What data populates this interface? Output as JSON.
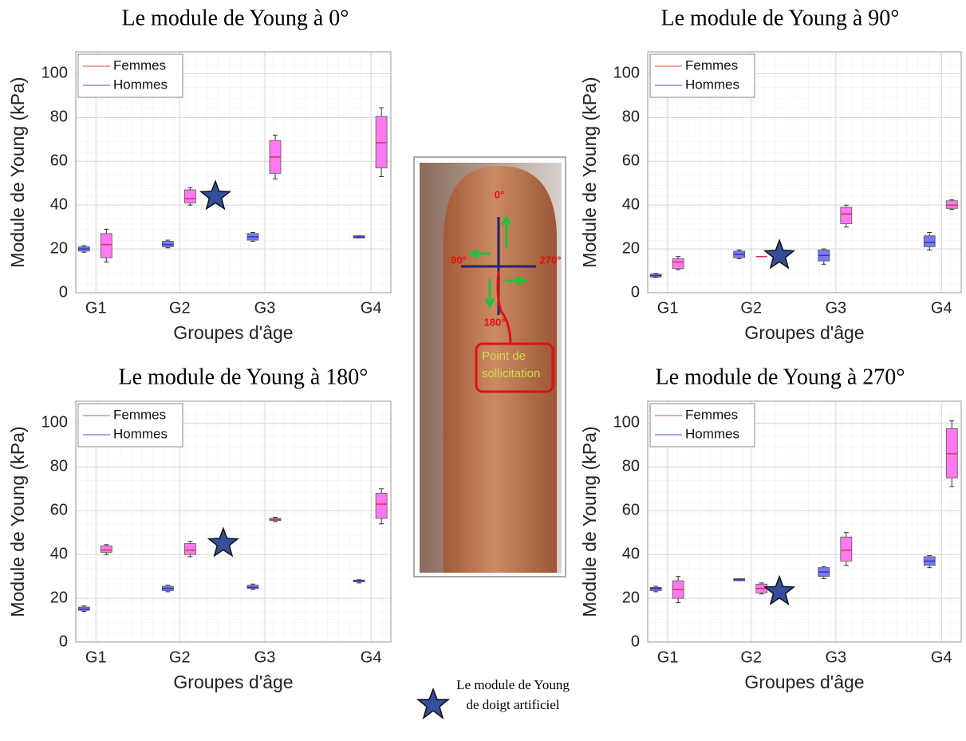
{
  "chart_data": [
    {
      "type": "box",
      "title": "Le module de Young à 0°",
      "xlabel": "Groupes d'âge",
      "ylabel": "Module de Young (kPa)",
      "categories": [
        "G1",
        "G2",
        "G3",
        "G4"
      ],
      "ylim": [
        0,
        110
      ],
      "yticks": [
        0,
        20,
        40,
        60,
        80,
        100
      ],
      "grid": true,
      "legend": "upper left",
      "series": [
        {
          "name": "Femmes",
          "color": "#f08a80",
          "fill": "#ff7af2",
          "median_color": "#e03050",
          "values": [
            [
              14,
              16,
              22,
              27,
              29
            ],
            [
              40,
              41,
              43,
              47,
              48
            ],
            [
              52,
              54.5,
              62,
              69.5,
              72
            ],
            [
              53,
              57,
              68.5,
              80.5,
              84.5
            ]
          ]
        },
        {
          "name": "Hommes",
          "color": "#8a8ae6",
          "fill": "#7a7af2",
          "median_color": "#3030c0",
          "values": [
            [
              18.5,
              19,
              20,
              21,
              21.5
            ],
            [
              20.5,
              21,
              22,
              23.5,
              24
            ],
            [
              23.5,
              24,
              25.5,
              27,
              27.5
            ],
            [
              25,
              25,
              25.5,
              26,
              26
            ]
          ]
        }
      ],
      "star_value": 44,
      "star_color": "#34509a"
    },
    {
      "type": "box",
      "title": "Le module de Young à 90°",
      "xlabel": "Groupes d'âge",
      "ylabel": "Module de Young (kPa)",
      "categories": [
        "G1",
        "G2",
        "G3",
        "G4"
      ],
      "ylim": [
        0,
        110
      ],
      "yticks": [
        0,
        20,
        40,
        60,
        80,
        100
      ],
      "grid": true,
      "legend": "upper left",
      "series": [
        {
          "name": "Femmes",
          "color": "#f08a80",
          "fill": "#ff7af2",
          "median_color": "#e03050",
          "values": [
            [
              10.5,
              11,
              14,
              15.5,
              16.5
            ],
            [
              16.5,
              16.5,
              16.5,
              16.5,
              16.5
            ],
            [
              30,
              31.5,
              36,
              39,
              40
            ],
            [
              38,
              38.5,
              40,
              42,
              42.5
            ]
          ]
        },
        {
          "name": "Hommes",
          "color": "#8a8ae6",
          "fill": "#7a7af2",
          "median_color": "#3030c0",
          "values": [
            [
              7,
              7.2,
              7.8,
              8.5,
              8.8
            ],
            [
              15.5,
              16,
              17.5,
              19,
              19.5
            ],
            [
              13,
              14.5,
              17,
              19.5,
              20
            ],
            [
              19.5,
              21,
              23,
              26,
              27.5
            ]
          ]
        }
      ],
      "star_value": 17,
      "star_color": "#34509a"
    },
    {
      "type": "box",
      "title": "Le module de Young à 180°",
      "xlabel": "Groupes d'âge",
      "ylabel": "Module de Young (kPa)",
      "categories": [
        "G1",
        "G2",
        "G3",
        "G4"
      ],
      "ylim": [
        0,
        110
      ],
      "yticks": [
        0,
        20,
        40,
        60,
        80,
        100
      ],
      "grid": true,
      "legend": "upper left",
      "series": [
        {
          "name": "Femmes",
          "color": "#f08a80",
          "fill": "#ff7af2",
          "median_color": "#e03050",
          "values": [
            [
              40,
              41,
              42,
              44,
              44.5
            ],
            [
              39,
              40,
              42,
              45,
              46
            ],
            [
              55,
              55.5,
              56,
              56.5,
              57
            ],
            [
              54,
              56.5,
              63,
              68,
              70
            ]
          ]
        },
        {
          "name": "Hommes",
          "color": "#8a8ae6",
          "fill": "#7a7af2",
          "median_color": "#3030c0",
          "values": [
            [
              14,
              14.5,
              15,
              16,
              16.5
            ],
            [
              23,
              23.5,
              24.5,
              25.5,
              26
            ],
            [
              24,
              24.5,
              25,
              26,
              26.5
            ],
            [
              27,
              27.5,
              28,
              28.3,
              28.5
            ]
          ]
        }
      ],
      "star_value": 45,
      "star_color": "#34509a"
    },
    {
      "type": "box",
      "title": "Le module de Young à 270°",
      "xlabel": "Groupes d'âge",
      "ylabel": "Module de Young (kPa)",
      "categories": [
        "G1",
        "G2",
        "G3",
        "G4"
      ],
      "ylim": [
        0,
        110
      ],
      "yticks": [
        0,
        20,
        40,
        60,
        80,
        100
      ],
      "grid": true,
      "legend": "upper left",
      "series": [
        {
          "name": "Femmes",
          "color": "#f08a80",
          "fill": "#ff7af2",
          "median_color": "#e03050",
          "values": [
            [
              18,
              20,
              24,
              28,
              30
            ],
            [
              22,
              22.5,
              24.5,
              26.5,
              27
            ],
            [
              35,
              37,
              42,
              48,
              50
            ],
            [
              71,
              75,
              86,
              97.5,
              101
            ]
          ]
        },
        {
          "name": "Hommes",
          "color": "#8a8ae6",
          "fill": "#7a7af2",
          "median_color": "#3030c0",
          "values": [
            [
              23,
              23.5,
              24.5,
              25,
              25.5
            ],
            [
              28,
              28,
              28.5,
              29,
              29
            ],
            [
              29,
              30,
              32,
              34,
              34.5
            ],
            [
              34,
              35,
              37,
              39,
              39.5
            ]
          ]
        }
      ],
      "star_value": 23,
      "star_color": "#34509a"
    }
  ],
  "photo": {
    "angle_top": "0°",
    "angle_left": "90°",
    "angle_right": "270°",
    "angle_bottom": "180°",
    "callout": "Point de sollicitation"
  },
  "star_legend": "Le module de Young de doigt artificiel"
}
